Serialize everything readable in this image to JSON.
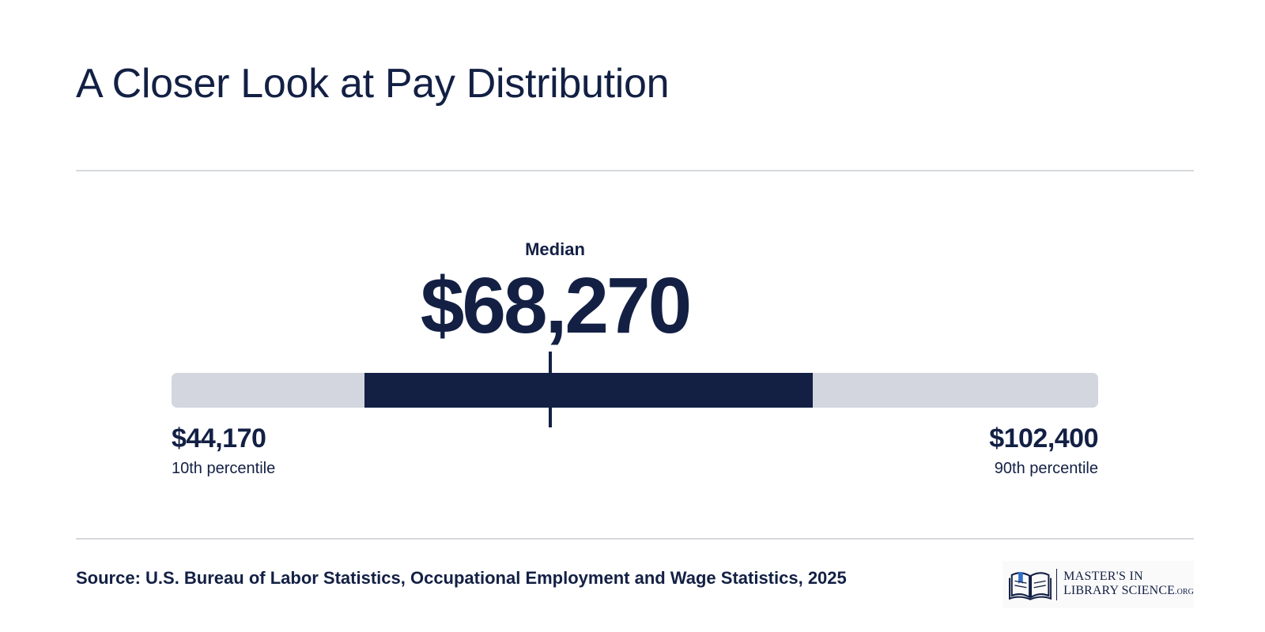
{
  "title": "A Closer Look at Pay Distribution",
  "chart_data": {
    "type": "range",
    "median": {
      "label": "Median",
      "value": 68270,
      "display": "$68,270"
    },
    "low": {
      "label": "10th percentile",
      "value": 44170,
      "display": "$44,170"
    },
    "high": {
      "label": "90th percentile",
      "value": 102400,
      "display": "$102,400"
    },
    "colors": {
      "range": "#132044",
      "track": "#d3d6de"
    }
  },
  "source": "Source: U.S. Bureau of Labor Statistics, Occupational Employment and Wage Statistics, 2025",
  "logo": {
    "line1": "MASTER'S IN",
    "line2": "LIBRARY SCIENCE",
    "suffix": ".ORG"
  }
}
